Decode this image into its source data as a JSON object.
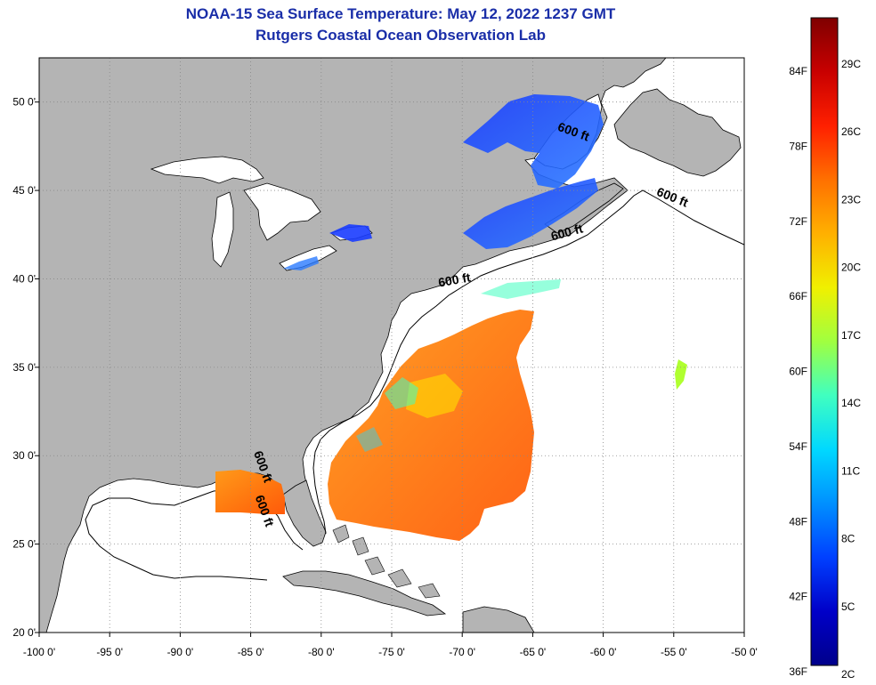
{
  "title": {
    "line1": "NOAA-15 Sea Surface Temperature:  May 12, 2022 1237 GMT",
    "line2": "Rutgers Coastal Ocean Observation Lab"
  },
  "map": {
    "lon_range": [
      -100,
      -50
    ],
    "lat_range": [
      20,
      52.5
    ],
    "lon_ticks": [
      {
        "lon": -100,
        "label": "-100 0'"
      },
      {
        "lon": -95,
        "label": "-95 0'"
      },
      {
        "lon": -90,
        "label": "-90 0'"
      },
      {
        "lon": -85,
        "label": "-85 0'"
      },
      {
        "lon": -80,
        "label": "-80 0'"
      },
      {
        "lon": -75,
        "label": "-75 0'"
      },
      {
        "lon": -70,
        "label": "-70 0'"
      },
      {
        "lon": -65,
        "label": "-65 0'"
      },
      {
        "lon": -60,
        "label": "-60 0'"
      },
      {
        "lon": -55,
        "label": "-55 0'"
      },
      {
        "lon": -50,
        "label": "-50 0'"
      }
    ],
    "lat_ticks": [
      {
        "lat": 20,
        "label": "20 0'"
      },
      {
        "lat": 25,
        "label": "25 0'"
      },
      {
        "lat": 30,
        "label": "30 0'"
      },
      {
        "lat": 35,
        "label": "35 0'"
      },
      {
        "lat": 40,
        "label": "40 0'"
      },
      {
        "lat": 45,
        "label": "45 0'"
      },
      {
        "lat": 50,
        "label": "50 0'"
      }
    ],
    "contour_labels": [
      {
        "text": "600 ft",
        "lon": -62.2,
        "lat": 48.1,
        "rot": 20
      },
      {
        "text": "600 ft",
        "lon": -55.2,
        "lat": 44.4,
        "rot": 22
      },
      {
        "text": "600 ft",
        "lon": -62.5,
        "lat": 42.4,
        "rot": -15
      },
      {
        "text": "600 ft",
        "lon": -70.5,
        "lat": 39.7,
        "rot": -10
      },
      {
        "text": "600 ft",
        "lon": -84.4,
        "lat": 29.3,
        "rot": 70
      },
      {
        "text": "600 ft",
        "lon": -84.3,
        "lat": 26.8,
        "rot": 70
      }
    ],
    "colors": {
      "land": "#b4b4b4",
      "ocean": "#ffffff",
      "coast": "#000000",
      "grid": "#888888"
    }
  },
  "colorbar": {
    "f_labels": [
      "84F",
      "78F",
      "72F",
      "66F",
      "60F",
      "54F",
      "48F",
      "42F",
      "36F"
    ],
    "c_labels": [
      "29C",
      "26C",
      "23C",
      "20C",
      "17C",
      "14C",
      "11C",
      "8C",
      "5C",
      "2C"
    ],
    "gradient": [
      "#7f0000",
      "#c80000",
      "#ff2000",
      "#ff7000",
      "#ffb000",
      "#f0f000",
      "#a0ff40",
      "#40ffc0",
      "#00d8ff",
      "#0090ff",
      "#0040ff",
      "#0000c8",
      "#00008b"
    ]
  }
}
